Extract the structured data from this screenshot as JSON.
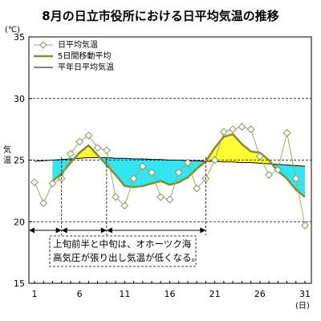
{
  "chart_data": {
    "type": "line",
    "title": "8月の日立市役所における日平均気温の推移",
    "y_unit": "(℃)",
    "ylabel": "気温",
    "x_unit": "(日)",
    "ylim": [
      15,
      35
    ],
    "y_ticks": [
      15,
      20,
      25,
      30,
      35
    ],
    "xlim": [
      1,
      31
    ],
    "x_ticks": [
      1,
      6,
      11,
      16,
      21,
      26,
      31
    ],
    "grid": "dashed horizontal at 20, 25, 30",
    "legend_position": "top-left",
    "x": [
      1,
      2,
      3,
      4,
      5,
      6,
      7,
      8,
      9,
      10,
      11,
      12,
      13,
      14,
      15,
      16,
      17,
      18,
      19,
      20,
      21,
      22,
      23,
      24,
      25,
      26,
      27,
      28,
      29,
      30,
      31
    ],
    "series": [
      {
        "name": "日平均気温",
        "style": "thin line with open diamond markers",
        "color": "#9aab6a",
        "values": [
          23.2,
          21.5,
          23.1,
          23.5,
          25.5,
          26.5,
          27.0,
          26.0,
          25.8,
          22.0,
          21.3,
          23.5,
          24.5,
          24.0,
          22.0,
          21.8,
          24.0,
          24.8,
          22.7,
          23.5,
          25.0,
          27.3,
          27.5,
          27.7,
          27.5,
          25.3,
          23.8,
          24.2,
          27.2,
          23.5,
          19.7
        ]
      },
      {
        "name": "5日間移動平均",
        "style": "thick line",
        "color": "#8c8c2c",
        "values": [
          null,
          null,
          23.3,
          23.9,
          24.8,
          25.6,
          26.2,
          25.4,
          24.6,
          23.8,
          22.9,
          22.8,
          22.9,
          23.1,
          23.3,
          23.0,
          23.2,
          23.6,
          24.3,
          24.9,
          26.0,
          26.9,
          27.1,
          26.3,
          25.7,
          25.6,
          25.0,
          24.1,
          23.5,
          22.6,
          22.0
        ]
      },
      {
        "name": "平年日平均気温",
        "style": "thin black line",
        "color": "#000000",
        "values": [
          24.9,
          24.95,
          25.0,
          25.05,
          25.1,
          25.15,
          25.2,
          25.2,
          25.2,
          25.15,
          25.15,
          25.1,
          25.1,
          25.05,
          25.05,
          25.0,
          25.0,
          24.95,
          24.95,
          24.9,
          24.9,
          24.85,
          24.85,
          24.8,
          24.8,
          24.75,
          24.7,
          24.65,
          24.6,
          24.55,
          24.5
        ]
      }
    ],
    "fill_below_normal_color": "#33e5f0",
    "fill_above_normal_color": "#ffff33",
    "period_markers": [
      {
        "from": 1,
        "to": 4
      },
      {
        "from": 4,
        "to": 9
      },
      {
        "from": 9,
        "to": 20
      }
    ],
    "annotation": {
      "line1": "上旬前半と中旬は、オホーツク海",
      "line2": "高気圧が張り出し気温が低くなる。"
    }
  }
}
